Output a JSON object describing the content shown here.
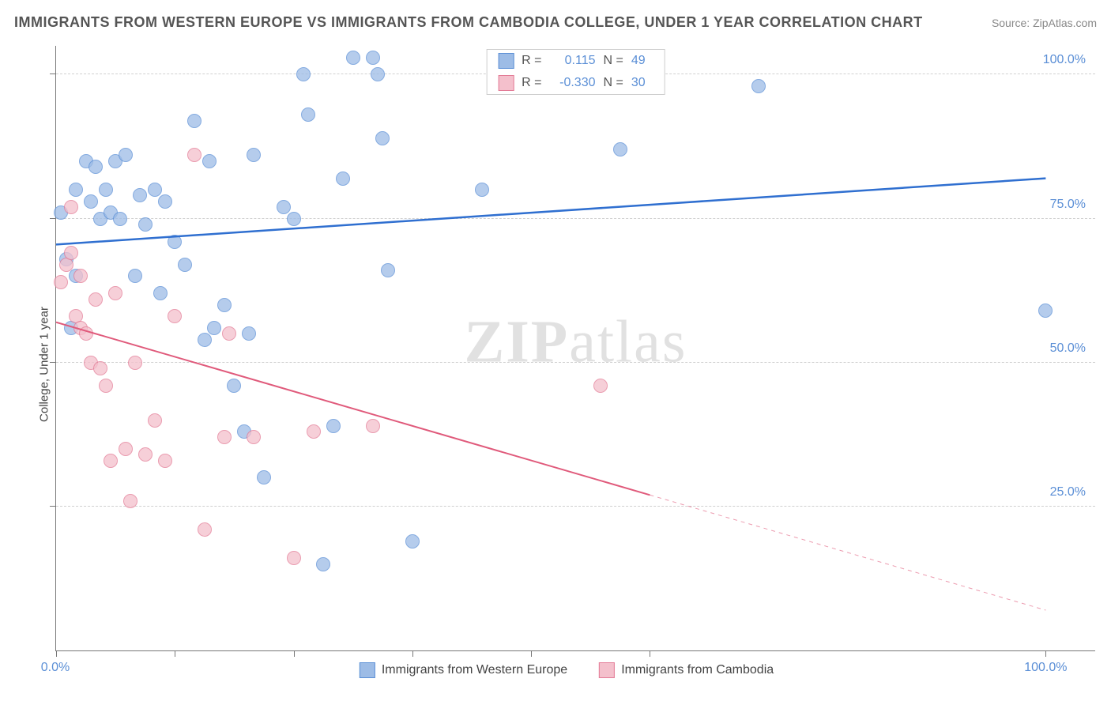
{
  "title": "IMMIGRANTS FROM WESTERN EUROPE VS IMMIGRANTS FROM CAMBODIA COLLEGE, UNDER 1 YEAR CORRELATION CHART",
  "source_label": "Source: ZipAtlas.com",
  "y_axis_label": "College, Under 1 year",
  "watermark_bold": "ZIP",
  "watermark_rest": "atlas",
  "chart": {
    "type": "scatter",
    "background_color": "#ffffff",
    "grid_color": "#d0d0d0",
    "axis_color": "#777777",
    "tick_label_color": "#5b8fd6",
    "xlim": [
      0,
      105
    ],
    "ylim": [
      0,
      105
    ],
    "x_ticks": [
      0,
      12,
      24,
      36,
      48,
      60,
      100
    ],
    "y_gridlines": [
      25,
      50,
      75,
      100
    ],
    "x_tick_labels": [
      {
        "x": 0,
        "label": "0.0%"
      },
      {
        "x": 100,
        "label": "100.0%"
      }
    ],
    "y_tick_labels": [
      {
        "y": 25,
        "label": "25.0%"
      },
      {
        "y": 50,
        "label": "50.0%"
      },
      {
        "y": 75,
        "label": "75.0%"
      },
      {
        "y": 100,
        "label": "100.0%"
      }
    ],
    "marker_radius": 9,
    "series": [
      {
        "name": "Immigrants from Western Europe",
        "fill_color": "#9dbce6",
        "stroke_color": "#5b8fd6",
        "regression": {
          "r": "0.115",
          "n": "49",
          "line_color": "#2f6fd0",
          "line_width": 2.5,
          "y_at_x0": 70.5,
          "y_at_x100": 82.0,
          "solid_until_x": 100
        },
        "points": [
          {
            "x": 0.5,
            "y": 76
          },
          {
            "x": 1,
            "y": 68
          },
          {
            "x": 1.5,
            "y": 56
          },
          {
            "x": 2,
            "y": 80
          },
          {
            "x": 2,
            "y": 65
          },
          {
            "x": 3,
            "y": 85
          },
          {
            "x": 3.5,
            "y": 78
          },
          {
            "x": 4,
            "y": 84
          },
          {
            "x": 4.5,
            "y": 75
          },
          {
            "x": 5,
            "y": 80
          },
          {
            "x": 5.5,
            "y": 76
          },
          {
            "x": 6,
            "y": 85
          },
          {
            "x": 6.5,
            "y": 75
          },
          {
            "x": 7,
            "y": 86
          },
          {
            "x": 8,
            "y": 65
          },
          {
            "x": 8.5,
            "y": 79
          },
          {
            "x": 9,
            "y": 74
          },
          {
            "x": 10,
            "y": 80
          },
          {
            "x": 10.5,
            "y": 62
          },
          {
            "x": 11,
            "y": 78
          },
          {
            "x": 12,
            "y": 71
          },
          {
            "x": 13,
            "y": 67
          },
          {
            "x": 14,
            "y": 92
          },
          {
            "x": 15,
            "y": 54
          },
          {
            "x": 15.5,
            "y": 85
          },
          {
            "x": 16,
            "y": 56
          },
          {
            "x": 17,
            "y": 60
          },
          {
            "x": 18,
            "y": 46
          },
          {
            "x": 19,
            "y": 38
          },
          {
            "x": 19.5,
            "y": 55
          },
          {
            "x": 20,
            "y": 86
          },
          {
            "x": 21,
            "y": 30
          },
          {
            "x": 23,
            "y": 77
          },
          {
            "x": 24,
            "y": 75
          },
          {
            "x": 25,
            "y": 100
          },
          {
            "x": 25.5,
            "y": 93
          },
          {
            "x": 27,
            "y": 15
          },
          {
            "x": 28,
            "y": 39
          },
          {
            "x": 29,
            "y": 82
          },
          {
            "x": 30,
            "y": 103
          },
          {
            "x": 32,
            "y": 103
          },
          {
            "x": 32.5,
            "y": 100
          },
          {
            "x": 33,
            "y": 89
          },
          {
            "x": 33.5,
            "y": 66
          },
          {
            "x": 36,
            "y": 19
          },
          {
            "x": 43,
            "y": 80
          },
          {
            "x": 57,
            "y": 87
          },
          {
            "x": 71,
            "y": 98
          },
          {
            "x": 100,
            "y": 59
          }
        ]
      },
      {
        "name": "Immigrants from Cambodia",
        "fill_color": "#f4c0cc",
        "stroke_color": "#e37b96",
        "regression": {
          "r": "-0.330",
          "n": "30",
          "line_color": "#e05a7b",
          "line_width": 2,
          "y_at_x0": 57,
          "y_at_x100": 7,
          "solid_until_x": 60
        },
        "points": [
          {
            "x": 0.5,
            "y": 64
          },
          {
            "x": 1,
            "y": 67
          },
          {
            "x": 1.5,
            "y": 69
          },
          {
            "x": 1.5,
            "y": 77
          },
          {
            "x": 2,
            "y": 58
          },
          {
            "x": 2.5,
            "y": 56
          },
          {
            "x": 2.5,
            "y": 65
          },
          {
            "x": 3,
            "y": 55
          },
          {
            "x": 3.5,
            "y": 50
          },
          {
            "x": 4,
            "y": 61
          },
          {
            "x": 4.5,
            "y": 49
          },
          {
            "x": 5,
            "y": 46
          },
          {
            "x": 5.5,
            "y": 33
          },
          {
            "x": 6,
            "y": 62
          },
          {
            "x": 7,
            "y": 35
          },
          {
            "x": 7.5,
            "y": 26
          },
          {
            "x": 8,
            "y": 50
          },
          {
            "x": 9,
            "y": 34
          },
          {
            "x": 10,
            "y": 40
          },
          {
            "x": 11,
            "y": 33
          },
          {
            "x": 12,
            "y": 58
          },
          {
            "x": 14,
            "y": 86
          },
          {
            "x": 15,
            "y": 21
          },
          {
            "x": 17,
            "y": 37
          },
          {
            "x": 17.5,
            "y": 55
          },
          {
            "x": 20,
            "y": 37
          },
          {
            "x": 24,
            "y": 16
          },
          {
            "x": 26,
            "y": 38
          },
          {
            "x": 32,
            "y": 39
          },
          {
            "x": 55,
            "y": 46
          }
        ]
      }
    ],
    "legend_top": {
      "r_label": "R =",
      "n_label": "N ="
    },
    "legend_bottom_labels": [
      "Immigrants from Western Europe",
      "Immigrants from Cambodia"
    ]
  }
}
